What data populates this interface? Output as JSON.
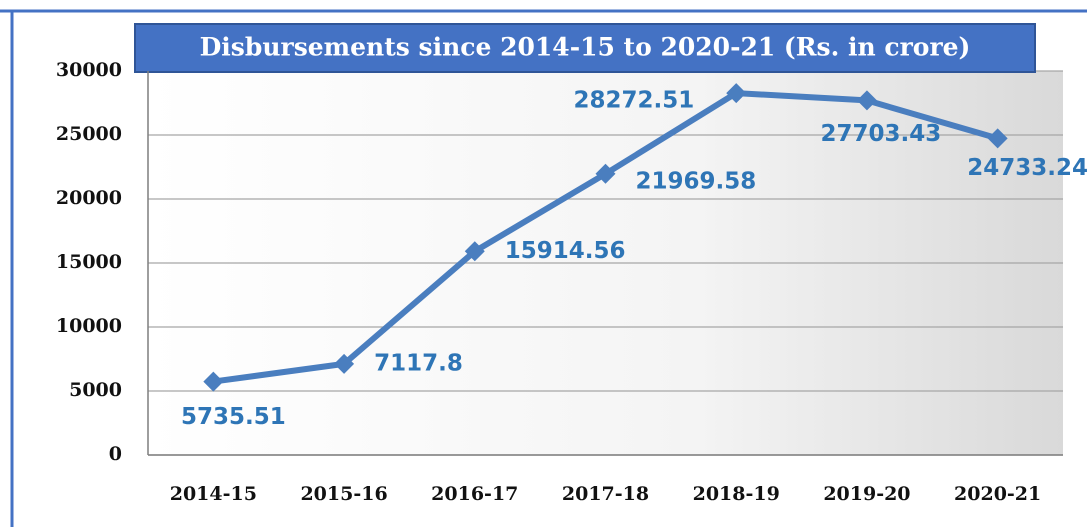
{
  "chart_data": {
    "type": "line",
    "title": "Disbursements since 2014-15 to 2020-21 (Rs. in crore)",
    "categories": [
      "2014-15",
      "2015-16",
      "2016-17",
      "2017-18",
      "2018-19",
      "2019-20",
      "2020-21"
    ],
    "series": [
      {
        "name": "Disbursements",
        "color": "#4a7ebf",
        "values": [
          5735.51,
          7117.8,
          15914.56,
          21969.58,
          28272.51,
          27703.43,
          24733.24
        ]
      }
    ],
    "ylim": [
      0,
      30000
    ],
    "yticks": [
      0,
      5000,
      10000,
      15000,
      20000,
      25000,
      30000
    ],
    "grid": true
  }
}
